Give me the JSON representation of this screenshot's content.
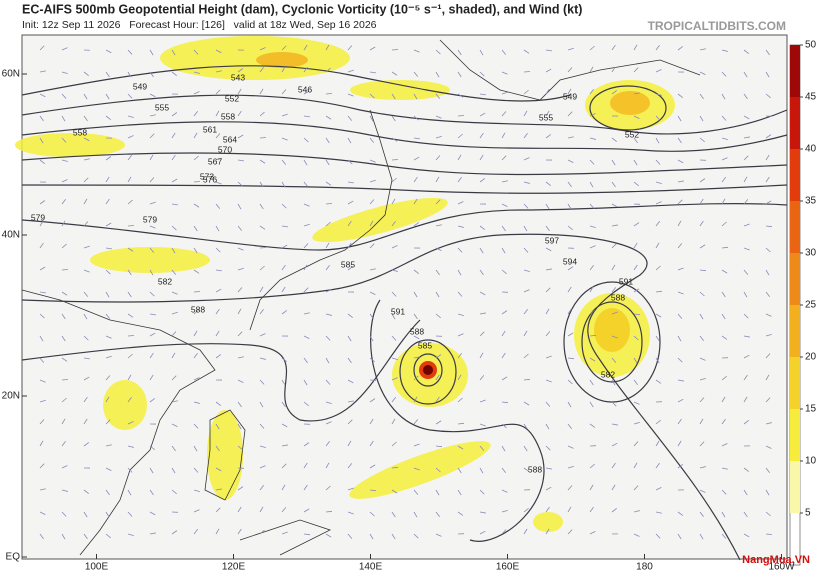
{
  "header": {
    "title": "EC-AIFS 500mb Geopotential Height (dam), Cyclonic Vorticity (10⁻⁵ s⁻¹, shaded), and Wind (kt)",
    "subtitle": "Init: 12z Sep 11 2026   Forecast Hour: [126]   valid at 18z Wed, Sep 16 2026",
    "brand": "TROPICALTIDBITS.COM"
  },
  "map": {
    "lat_labels": [
      {
        "value": 60,
        "label": "60N"
      },
      {
        "value": 40,
        "label": "40N"
      },
      {
        "value": 20,
        "label": "20N"
      },
      {
        "value": 0,
        "label": "EQ"
      }
    ],
    "lon_labels": [
      {
        "value": 100,
        "label": "100E"
      },
      {
        "value": 120,
        "label": "120E"
      },
      {
        "value": 140,
        "label": "140E"
      },
      {
        "value": 160,
        "label": "160E"
      },
      {
        "value": 180,
        "label": "180"
      },
      {
        "value": 200,
        "label": "160W"
      }
    ],
    "contour_labels": [
      "543",
      "546",
      "549",
      "552",
      "555",
      "558",
      "561",
      "564",
      "567",
      "570",
      "573",
      "576",
      "579",
      "582",
      "585",
      "588",
      "591",
      "594",
      "597",
      "588",
      "585",
      "591",
      "588",
      "582",
      "549",
      "552",
      "555",
      "558",
      "579",
      "588"
    ]
  },
  "colorbar": {
    "range": [
      0,
      50
    ],
    "ticks": [
      5,
      10,
      15,
      20,
      25,
      30,
      35,
      40,
      45,
      50
    ],
    "colors": [
      "#fbf7a8",
      "#f6ec3c",
      "#f5d22a",
      "#f2b01f",
      "#ee8a18",
      "#ea6412",
      "#e23c0c",
      "#c8160a",
      "#a00808",
      "#6e0404"
    ]
  },
  "watermark": "NangMua.VN"
}
